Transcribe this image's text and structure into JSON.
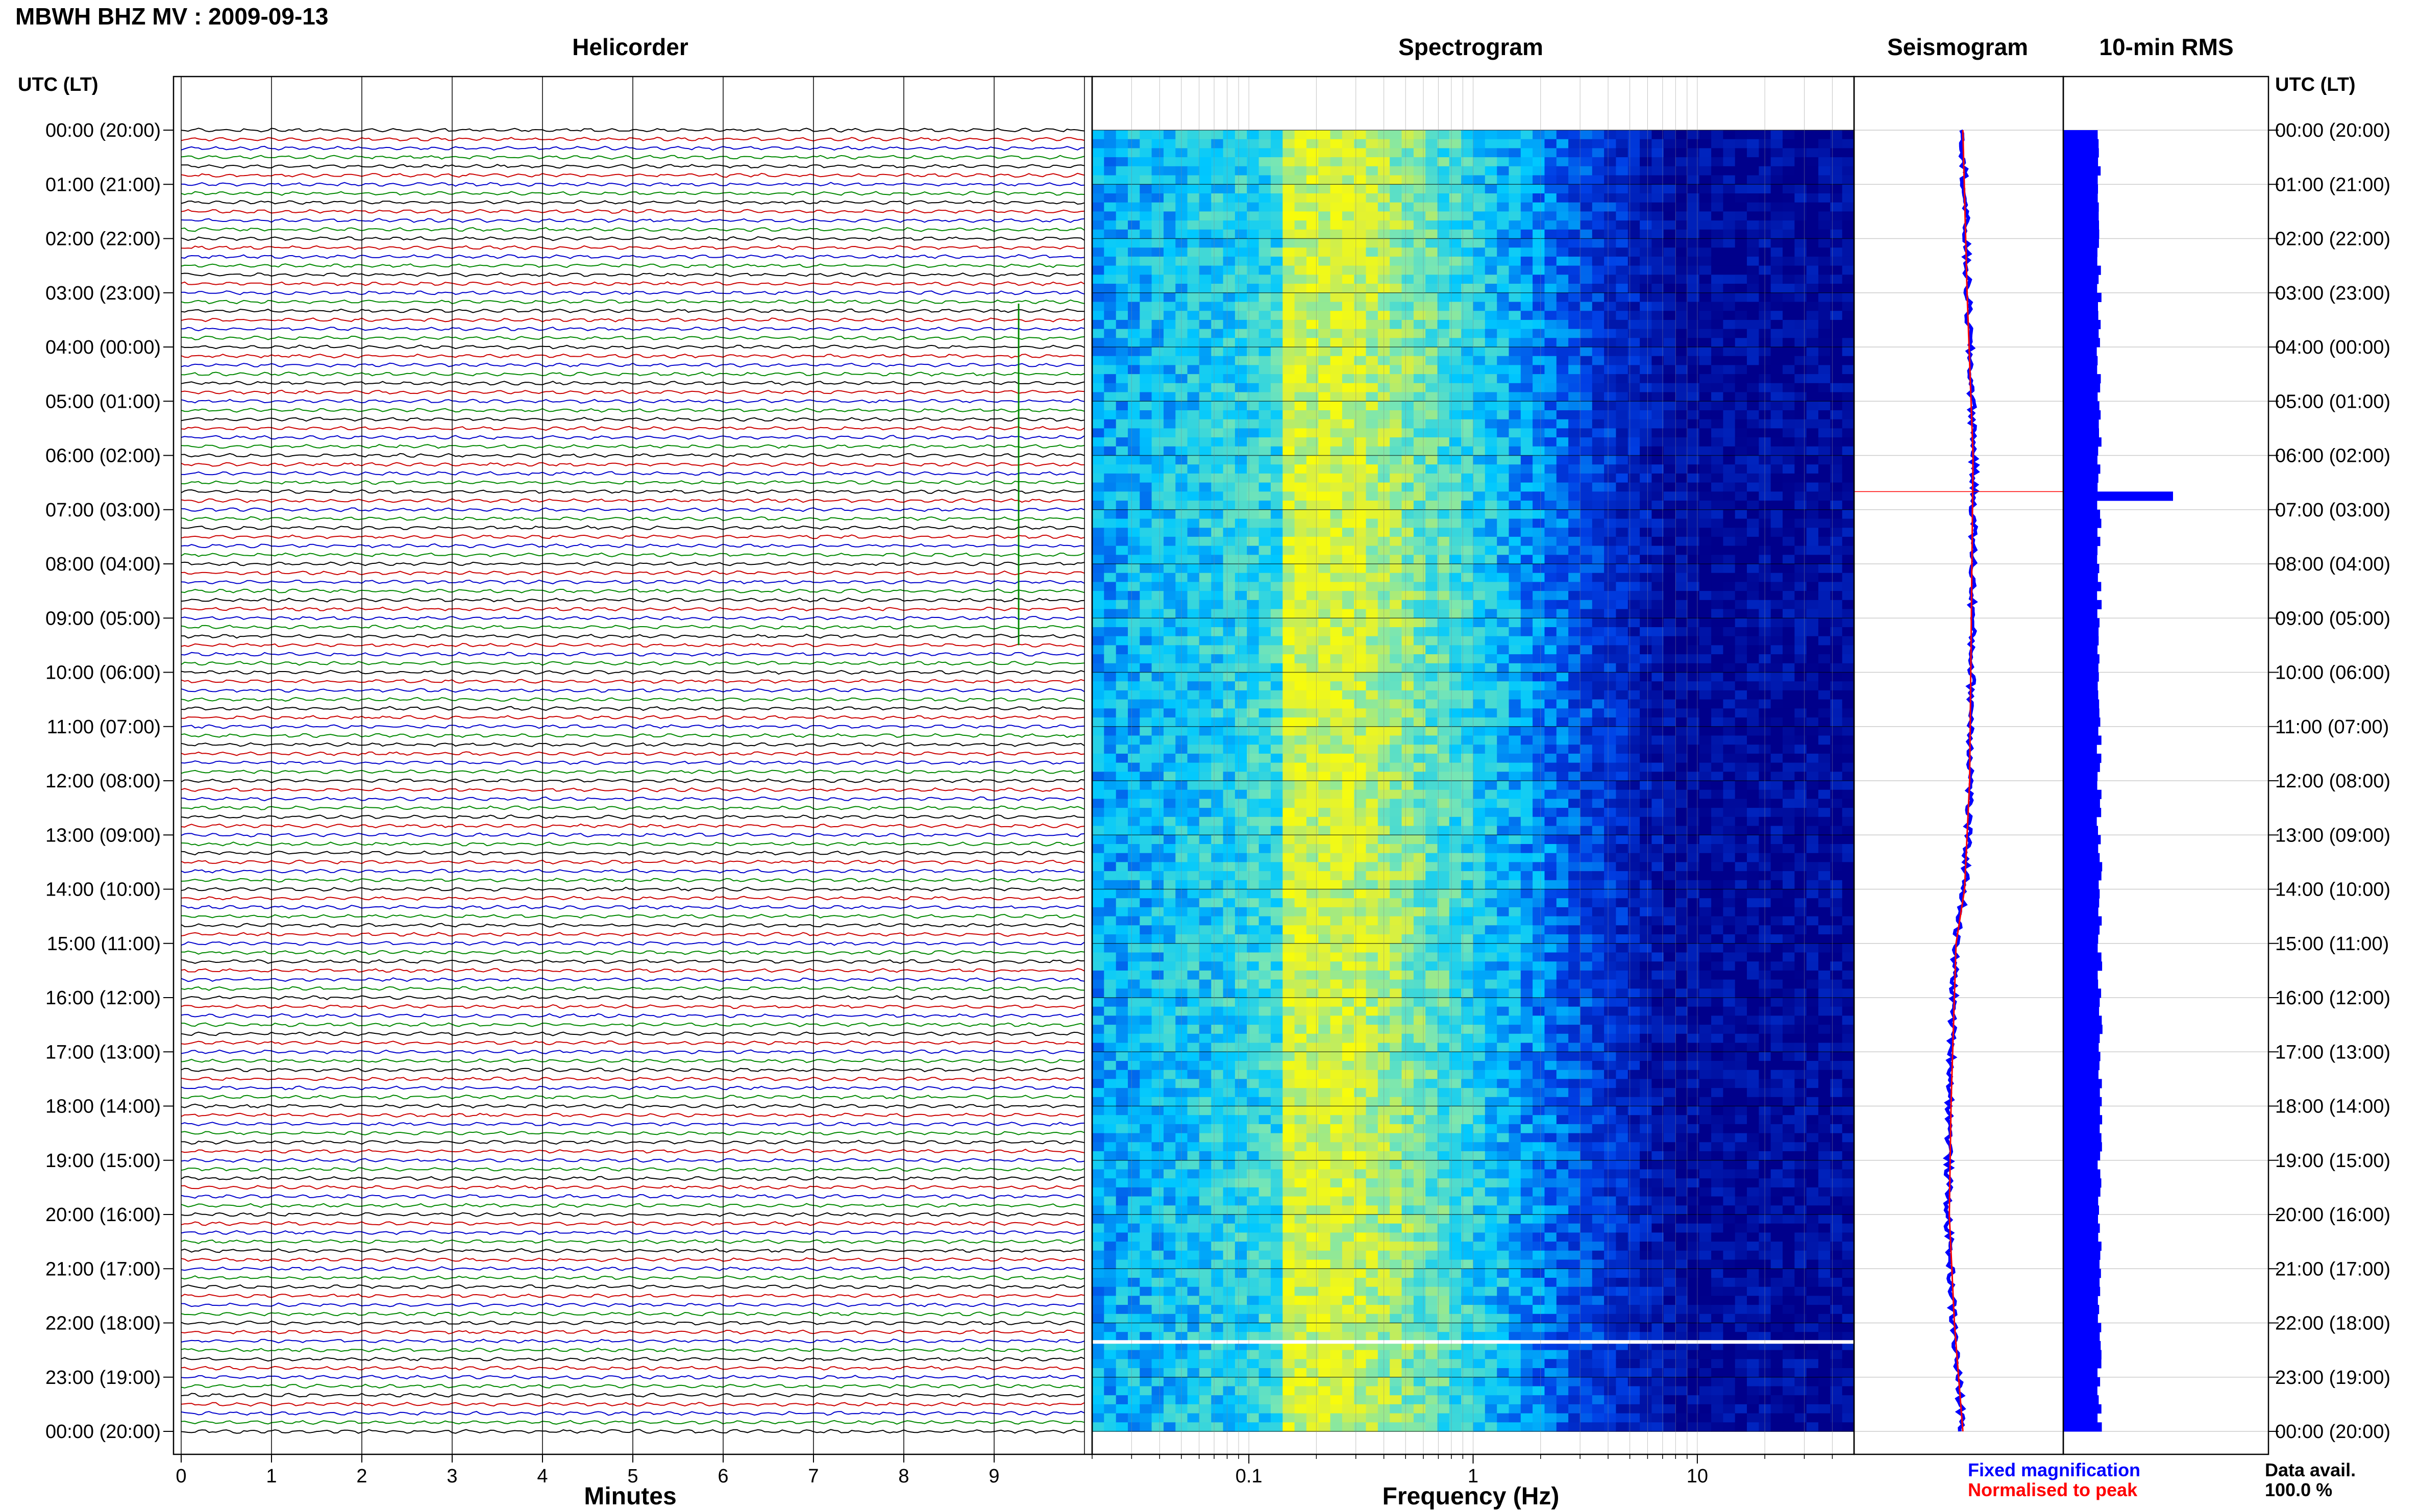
{
  "title": "MBWH BHZ MV : 2009-09-13",
  "panels": {
    "helicorder": "Helicorder",
    "spectrogram": "Spectrogram",
    "seismogram": "Seismogram",
    "rms": "10-min RMS"
  },
  "time_axis_label": "UTC (LT)",
  "time_labels": [
    "00:00 (20:00)",
    "01:00 (21:00)",
    "02:00 (22:00)",
    "03:00 (23:00)",
    "04:00 (00:00)",
    "05:00 (01:00)",
    "06:00 (02:00)",
    "07:00 (03:00)",
    "08:00 (04:00)",
    "09:00 (05:00)",
    "10:00 (06:00)",
    "11:00 (07:00)",
    "12:00 (08:00)",
    "13:00 (09:00)",
    "14:00 (10:00)",
    "15:00 (11:00)",
    "16:00 (12:00)",
    "17:00 (13:00)",
    "18:00 (14:00)",
    "19:00 (15:00)",
    "20:00 (16:00)",
    "21:00 (17:00)",
    "22:00 (18:00)",
    "23:00 (19:00)",
    "00:00 (20:00)"
  ],
  "helicorder_xlabel": "Minutes",
  "minute_ticks": [
    "0",
    "1",
    "2",
    "3",
    "4",
    "5",
    "6",
    "7",
    "8",
    "9"
  ],
  "spectrogram_xlabel": "Frequency (Hz)",
  "freq_ticks": [
    "0.1",
    "1",
    "10"
  ],
  "legend": {
    "fixed": "Fixed magnification",
    "normalised": "Normalised to peak"
  },
  "data_avail": {
    "label": "Data avail.",
    "value": "100.0 %"
  },
  "colors": {
    "trace_cycle": [
      "#000000",
      "#cc0000",
      "#0000cc",
      "#008800"
    ],
    "fixed": "#0000ff",
    "normalised": "#ff0000",
    "rms_bar": "#0000ff",
    "spectrogram_background": "#00008b"
  },
  "chart_data": {
    "type": "heatmap",
    "description_panels": [
      "helicorder",
      "spectrogram",
      "seismogram",
      "rms"
    ],
    "time_range_utc": [
      "00:00",
      "24:00"
    ],
    "traces_per_hour": 6,
    "trace_minutes": 10,
    "freq_range_hz": [
      0.02,
      50
    ],
    "freq_scale": "log",
    "spectrogram_peak_band_hz": [
      0.15,
      0.3
    ],
    "rms_10min": {
      "baseline_level": 1.0,
      "spike_at_utc": "06:40",
      "spike_level": 3.2
    },
    "seismogram_envelope": {
      "utc": [
        "00:00",
        "03:00",
        "06:00",
        "09:00",
        "12:00",
        "14:00",
        "15:00",
        "18:00",
        "20:00",
        "22:00",
        "24:00"
      ],
      "fixed": [
        0.0,
        0.05,
        0.12,
        0.1,
        0.08,
        0.02,
        -0.08,
        -0.14,
        -0.16,
        -0.1,
        0.0
      ]
    }
  }
}
